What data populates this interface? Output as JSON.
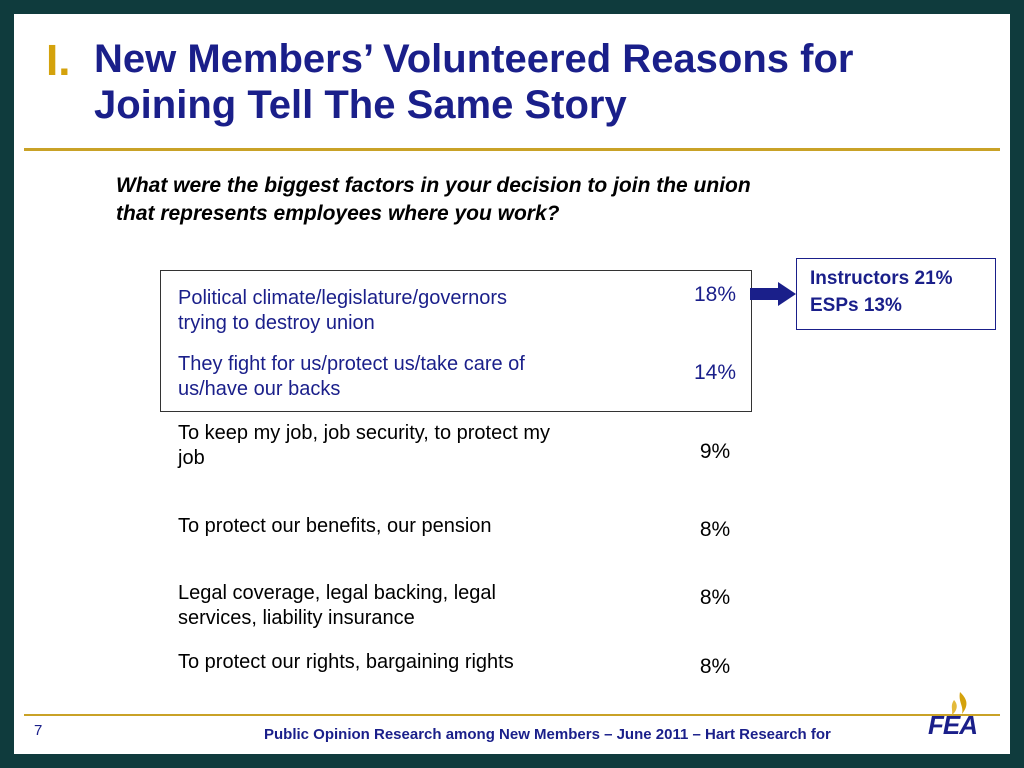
{
  "title": {
    "numeral": "I.",
    "line1": "New Members’ Volunteered Reasons for",
    "line2": "Joining Tell The Same Story"
  },
  "question": {
    "line1": "What were the biggest factors in your decision to join the union",
    "line2": "that represents employees where you work?"
  },
  "rows": [
    {
      "line1": "Political climate/legislature/governors",
      "line2": "trying to destroy union",
      "pct": "18%"
    },
    {
      "line1": "They fight for us/protect us/take care of",
      "line2": "us/have our backs",
      "pct": "14%"
    },
    {
      "line1": "To keep my job, job security, to protect my",
      "line2": "job",
      "pct": "9%"
    },
    {
      "line1": "To protect our benefits, our pension",
      "line2": "",
      "pct": "8%"
    },
    {
      "line1": "Legal coverage, legal backing, legal",
      "line2": "services, liability insurance",
      "pct": "8%"
    },
    {
      "line1": "To protect our rights, bargaining rights",
      "line2": "",
      "pct": "8%"
    }
  ],
  "callout": {
    "line1": "Instructors 21%",
    "line2": "ESPs 13%"
  },
  "footer": {
    "page_number": "7",
    "text": "Public Opinion Research among New Members – June 2011 – Hart Research for"
  },
  "logo": {
    "text": "FEA"
  },
  "colors": {
    "background": "#0f3b3d",
    "title_blue": "#1a1f8a",
    "gold": "#c9a227"
  }
}
